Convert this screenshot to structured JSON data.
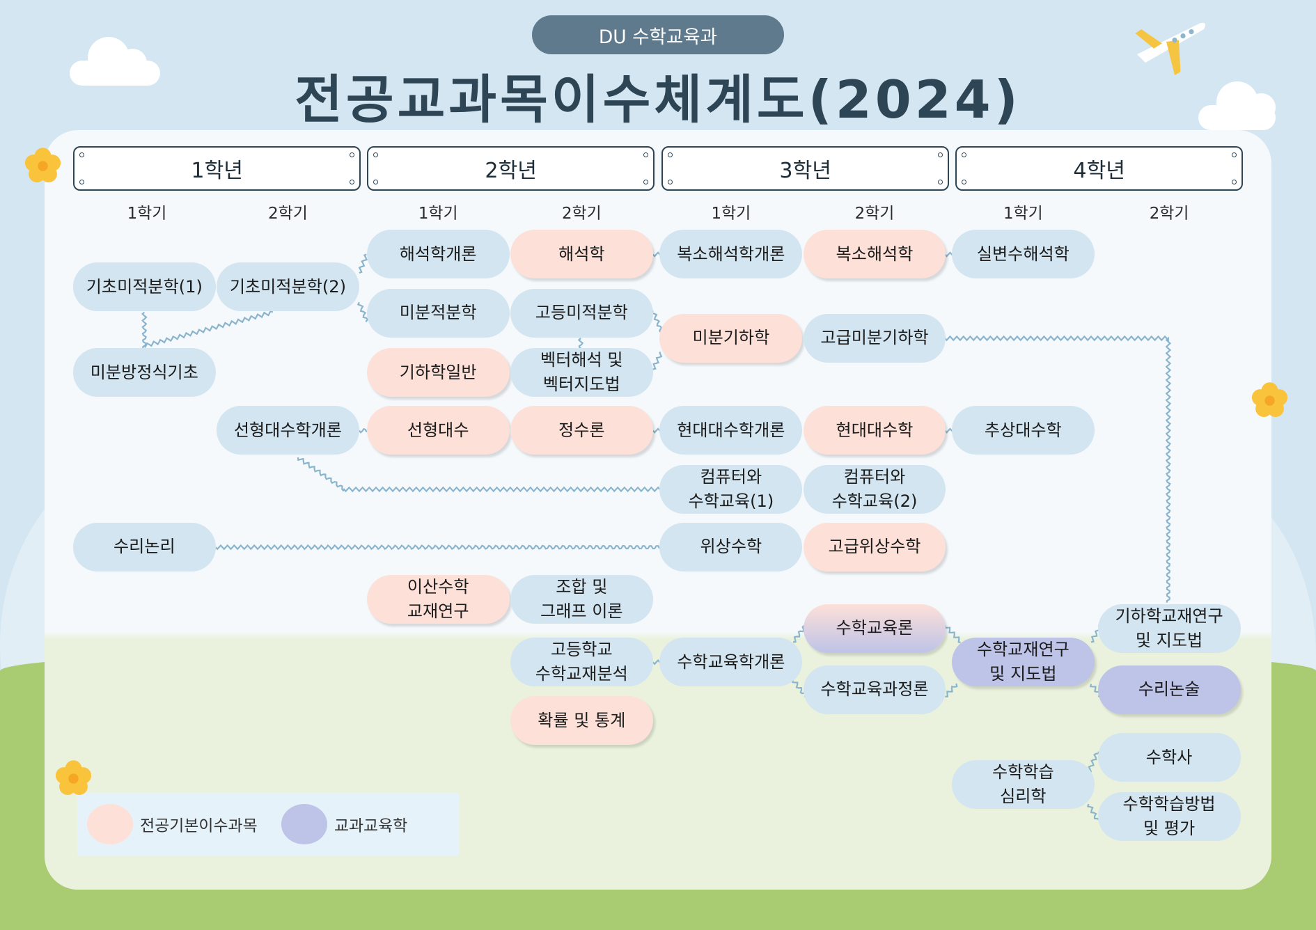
{
  "header": {
    "badge": "DU 수학교육과",
    "title": "전공교과목이수체계도(2024)"
  },
  "years": [
    "1학년",
    "2학년",
    "3학년",
    "4학년"
  ],
  "semester_labels": [
    "1학기",
    "2학기",
    "1학기",
    "2학기",
    "1학기",
    "2학기",
    "1학기",
    "2학기"
  ],
  "colors": {
    "basic": "#d2e5f0",
    "major_basic": "#fde0d8",
    "subject_education": "#bec3e8"
  },
  "courses": [
    {
      "name": "기초미적분학(1)",
      "col": 1,
      "row": 342,
      "type": "blue"
    },
    {
      "name": "기초미적분학(2)",
      "col": 2,
      "row": 342,
      "type": "blue"
    },
    {
      "name": "미분방정식기초",
      "col": 1,
      "row": 444,
      "type": "blue"
    },
    {
      "name": "해석학개론",
      "col": 3,
      "row": 303,
      "type": "blue"
    },
    {
      "name": "미분적분학",
      "col": 3,
      "row": 373,
      "type": "blue"
    },
    {
      "name": "기하학일반",
      "col": 3,
      "row": 444,
      "type": "pink"
    },
    {
      "name": "해석학",
      "col": 4,
      "row": 303,
      "type": "pink"
    },
    {
      "name": "고등미적분학",
      "col": 4,
      "row": 373,
      "type": "blue"
    },
    {
      "name": "벡터해석 및\n벡터지도법",
      "col": 4,
      "row": 444,
      "type": "blue"
    },
    {
      "name": "선형대수학개론",
      "col": 2,
      "row": 513,
      "type": "blue"
    },
    {
      "name": "선형대수",
      "col": 3,
      "row": 513,
      "type": "pink"
    },
    {
      "name": "정수론",
      "col": 4,
      "row": 513,
      "type": "pink"
    },
    {
      "name": "복소해석학개론",
      "col": 5,
      "row": 303,
      "type": "blue"
    },
    {
      "name": "미분기하학",
      "col": 5,
      "row": 403,
      "type": "pink"
    },
    {
      "name": "현대대수학개론",
      "col": 5,
      "row": 513,
      "type": "blue"
    },
    {
      "name": "컴퓨터와\n수학교육(1)",
      "col": 5,
      "row": 583,
      "type": "blue"
    },
    {
      "name": "위상수학",
      "col": 5,
      "row": 652,
      "type": "blue"
    },
    {
      "name": "복소해석학",
      "col": 6,
      "row": 303,
      "type": "pink"
    },
    {
      "name": "고급미분기하학",
      "col": 6,
      "row": 403,
      "type": "blue"
    },
    {
      "name": "현대대수학",
      "col": 6,
      "row": 513,
      "type": "pink"
    },
    {
      "name": "컴퓨터와\n수학교육(2)",
      "col": 6,
      "row": 583,
      "type": "blue"
    },
    {
      "name": "고급위상수학",
      "col": 6,
      "row": 652,
      "type": "pink"
    },
    {
      "name": "실변수해석학",
      "col": 7,
      "row": 303,
      "type": "blue"
    },
    {
      "name": "추상대수학",
      "col": 7,
      "row": 513,
      "type": "blue"
    },
    {
      "name": "수리논리",
      "col": 1,
      "row": 652,
      "type": "blue"
    },
    {
      "name": "이산수학\n교재연구",
      "col": 3,
      "row": 714,
      "type": "pink"
    },
    {
      "name": "조합 및\n그래프 이론",
      "col": 4,
      "row": 714,
      "type": "blue"
    },
    {
      "name": "고등학교\n수학교재분석",
      "col": 4,
      "row": 789,
      "type": "blue"
    },
    {
      "name": "확률 및 통계",
      "col": 4,
      "row": 859,
      "type": "pink"
    },
    {
      "name": "수학교육학개론",
      "col": 5,
      "row": 789,
      "type": "blue"
    },
    {
      "name": "수학교육론",
      "col": 6,
      "row": 749,
      "type": "grad"
    },
    {
      "name": "수학교육과정론",
      "col": 6,
      "row": 822,
      "type": "blue"
    },
    {
      "name": "수학교재연구\n및 지도법",
      "col": 7,
      "row": 789,
      "type": "purple"
    },
    {
      "name": "기하학교재연구\n및 지도법",
      "col": 8,
      "row": 749,
      "type": "blue"
    },
    {
      "name": "수리논술",
      "col": 8,
      "row": 822,
      "type": "purple"
    },
    {
      "name": "수학학습\n심리학",
      "col": 7,
      "row": 935,
      "type": "blue"
    },
    {
      "name": "수학사",
      "col": 8,
      "row": 903,
      "type": "blue"
    },
    {
      "name": "수학학습방법\n및 평가",
      "col": 8,
      "row": 973,
      "type": "blue"
    }
  ],
  "legend": [
    {
      "label": "전공기본이수과목",
      "color": "#fde0d8"
    },
    {
      "label": "교과교육학",
      "color": "#bec3e8"
    }
  ]
}
